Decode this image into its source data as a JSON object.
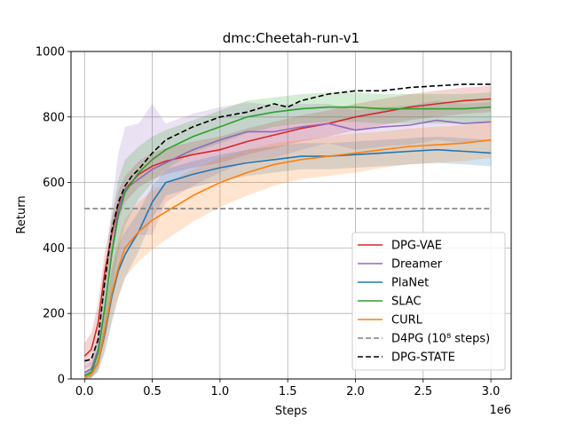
{
  "chart_data": {
    "type": "line",
    "title": "dmc:Cheetah-run-v1",
    "xlabel": "Steps",
    "ylabel": "Return",
    "x_multiplier_label": "1e6",
    "xlim": [
      -0.1,
      3.15
    ],
    "ylim": [
      0,
      1000
    ],
    "x_ticks": [
      0.0,
      0.5,
      1.0,
      1.5,
      2.0,
      2.5,
      3.0
    ],
    "x_tick_labels": [
      "0.0",
      "0.5",
      "1.0",
      "1.5",
      "2.0",
      "2.5",
      "3.0"
    ],
    "y_ticks": [
      0,
      200,
      400,
      600,
      800,
      1000
    ],
    "y_tick_labels": [
      "0",
      "200",
      "400",
      "600",
      "800",
      "1000"
    ],
    "grid": true,
    "legend_position": "lower-right",
    "series": [
      {
        "name": "DPG-VAE",
        "color": "#d62728",
        "style": "solid",
        "x": [
          0.0,
          0.05,
          0.1,
          0.15,
          0.2,
          0.25,
          0.3,
          0.4,
          0.5,
          0.6,
          0.8,
          1.0,
          1.2,
          1.4,
          1.6,
          1.8,
          2.0,
          2.2,
          2.4,
          2.6,
          2.8,
          3.0
        ],
        "y": [
          70,
          90,
          170,
          330,
          440,
          530,
          580,
          625,
          650,
          665,
          685,
          700,
          725,
          745,
          765,
          780,
          800,
          815,
          830,
          840,
          850,
          855
        ],
        "band": [
          40,
          50,
          60,
          60,
          50,
          45,
          40,
          40,
          40,
          40,
          40,
          40,
          40,
          40,
          40,
          40,
          40,
          40,
          40,
          40,
          40,
          40
        ]
      },
      {
        "name": "Dreamer",
        "color": "#9467bd",
        "style": "solid",
        "x": [
          0.0,
          0.05,
          0.1,
          0.15,
          0.2,
          0.25,
          0.3,
          0.4,
          0.5,
          0.6,
          0.8,
          1.0,
          1.2,
          1.4,
          1.6,
          1.8,
          2.0,
          2.2,
          2.4,
          2.6,
          2.8,
          3.0
        ],
        "y": [
          20,
          30,
          90,
          220,
          380,
          520,
          580,
          610,
          640,
          660,
          700,
          730,
          755,
          755,
          770,
          780,
          760,
          770,
          775,
          790,
          780,
          785
        ],
        "band": [
          20,
          25,
          50,
          100,
          150,
          170,
          190,
          170,
          200,
          120,
          110,
          100,
          90,
          80,
          70,
          60,
          60,
          60,
          60,
          60,
          60,
          60
        ]
      },
      {
        "name": "PlaNet",
        "color": "#1f77b4",
        "style": "solid",
        "x": [
          0.0,
          0.05,
          0.1,
          0.15,
          0.2,
          0.25,
          0.3,
          0.4,
          0.5,
          0.6,
          0.8,
          1.0,
          1.2,
          1.4,
          1.6,
          1.8,
          2.0,
          2.2,
          2.4,
          2.6,
          2.8,
          3.0
        ],
        "y": [
          10,
          20,
          50,
          140,
          250,
          330,
          380,
          450,
          540,
          600,
          625,
          645,
          660,
          670,
          680,
          680,
          685,
          690,
          695,
          700,
          695,
          690
        ],
        "band": [
          10,
          15,
          30,
          60,
          80,
          80,
          70,
          60,
          50,
          40,
          40,
          40,
          40,
          40,
          40,
          40,
          40,
          40,
          40,
          40,
          40,
          40
        ]
      },
      {
        "name": "SLAC",
        "color": "#2ca02c",
        "style": "solid",
        "x": [
          0.0,
          0.05,
          0.1,
          0.15,
          0.2,
          0.25,
          0.3,
          0.4,
          0.5,
          0.6,
          0.8,
          1.0,
          1.2,
          1.4,
          1.6,
          1.8,
          2.0,
          2.2,
          2.4,
          2.6,
          2.8,
          3.0
        ],
        "y": [
          10,
          20,
          80,
          220,
          380,
          500,
          570,
          630,
          670,
          700,
          740,
          770,
          800,
          815,
          825,
          830,
          830,
          825,
          825,
          825,
          825,
          830
        ],
        "band": [
          10,
          20,
          50,
          90,
          110,
          110,
          100,
          80,
          70,
          60,
          50,
          50,
          50,
          45,
          45,
          45,
          45,
          45,
          45,
          45,
          45,
          45
        ]
      },
      {
        "name": "CURL",
        "color": "#ff7f0e",
        "style": "solid",
        "x": [
          0.0,
          0.05,
          0.1,
          0.15,
          0.2,
          0.25,
          0.3,
          0.4,
          0.5,
          0.6,
          0.8,
          1.0,
          1.2,
          1.4,
          1.6,
          1.8,
          2.0,
          2.2,
          2.4,
          2.6,
          2.8,
          3.0
        ],
        "y": [
          5,
          15,
          50,
          150,
          260,
          340,
          400,
          450,
          485,
          510,
          560,
          600,
          630,
          655,
          670,
          680,
          690,
          700,
          710,
          715,
          720,
          730
        ],
        "band": [
          5,
          10,
          25,
          60,
          80,
          90,
          90,
          90,
          90,
          85,
          80,
          75,
          70,
          65,
          60,
          60,
          60,
          55,
          55,
          55,
          55,
          55
        ]
      },
      {
        "name": "D4PG (10⁸ steps)",
        "color": "#808080",
        "style": "dashed",
        "x": [
          0.0,
          3.0
        ],
        "y": [
          520,
          520
        ]
      },
      {
        "name": "DPG-STATE",
        "color": "#000000",
        "style": "dashed",
        "x": [
          0.0,
          0.05,
          0.1,
          0.15,
          0.2,
          0.25,
          0.3,
          0.35,
          0.4,
          0.5,
          0.6,
          0.8,
          1.0,
          1.2,
          1.4,
          1.5,
          1.6,
          1.8,
          2.0,
          2.2,
          2.4,
          2.6,
          2.8,
          3.0
        ],
        "y": [
          55,
          60,
          120,
          300,
          450,
          540,
          590,
          620,
          640,
          690,
          730,
          770,
          800,
          815,
          840,
          830,
          850,
          870,
          880,
          880,
          890,
          895,
          900,
          900
        ]
      }
    ]
  }
}
